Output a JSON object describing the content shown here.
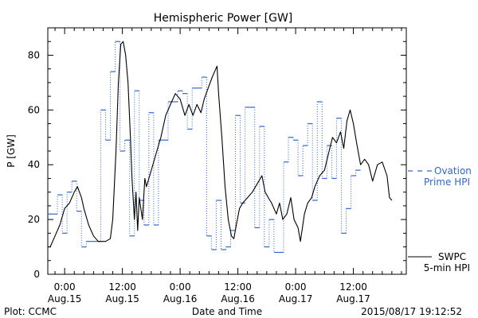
{
  "chart_data": {
    "type": "line",
    "title": "Hemispheric Power [GW]",
    "ylabel": "P [GW]",
    "xlabel": "Date and Time",
    "ylim": [
      0,
      90
    ],
    "y_ticks": [
      0,
      20,
      40,
      60,
      80
    ],
    "xlim": [
      "2015-08-14T20:30",
      "2015-08-17T23:00"
    ],
    "x_ticks": [
      {
        "time": "2015-08-15T00:00",
        "line1": "0:00",
        "line2": "Aug.15"
      },
      {
        "time": "2015-08-15T12:00",
        "line1": "12:00",
        "line2": "Aug.15"
      },
      {
        "time": "2015-08-16T00:00",
        "line1": "0:00",
        "line2": "Aug.16"
      },
      {
        "time": "2015-08-16T12:00",
        "line1": "12:00",
        "line2": "Aug.16"
      },
      {
        "time": "2015-08-17T00:00",
        "line1": "0:00",
        "line2": "Aug.17"
      },
      {
        "time": "2015-08-17T12:00",
        "line1": "12:00",
        "line2": "Aug.17"
      }
    ],
    "grid": false,
    "legend": {
      "placement": "right"
    },
    "series": [
      {
        "name": "SWPC 5-min HPI",
        "legend_lines": [
          "SWPC",
          "5-min HPI"
        ],
        "color": "#000000",
        "style": "solid",
        "points": [
          [
            "2015-08-14T20:30",
            10
          ],
          [
            "2015-08-14T21:00",
            10
          ],
          [
            "2015-08-14T22:00",
            14
          ],
          [
            "2015-08-14T23:00",
            18
          ],
          [
            "2015-08-15T00:00",
            24
          ],
          [
            "2015-08-15T01:00",
            26
          ],
          [
            "2015-08-15T02:00",
            30
          ],
          [
            "2015-08-15T02:40",
            32
          ],
          [
            "2015-08-15T03:30",
            28
          ],
          [
            "2015-08-15T04:00",
            24
          ],
          [
            "2015-08-15T05:00",
            18
          ],
          [
            "2015-08-15T06:00",
            14
          ],
          [
            "2015-08-15T07:00",
            12
          ],
          [
            "2015-08-15T08:30",
            12
          ],
          [
            "2015-08-15T09:30",
            13
          ],
          [
            "2015-08-15T10:00",
            20
          ],
          [
            "2015-08-15T10:40",
            45
          ],
          [
            "2015-08-15T11:10",
            70
          ],
          [
            "2015-08-15T11:40",
            84
          ],
          [
            "2015-08-15T12:10",
            85
          ],
          [
            "2015-08-15T12:40",
            80
          ],
          [
            "2015-08-15T13:10",
            70
          ],
          [
            "2015-08-15T13:40",
            50
          ],
          [
            "2015-08-15T14:00",
            35
          ],
          [
            "2015-08-15T14:30",
            20
          ],
          [
            "2015-08-15T14:50",
            30
          ],
          [
            "2015-08-15T15:10",
            16
          ],
          [
            "2015-08-15T15:30",
            28
          ],
          [
            "2015-08-15T16:10",
            20
          ],
          [
            "2015-08-15T16:40",
            35
          ],
          [
            "2015-08-15T17:00",
            32
          ],
          [
            "2015-08-15T18:00",
            38
          ],
          [
            "2015-08-15T19:00",
            44
          ],
          [
            "2015-08-15T20:00",
            50
          ],
          [
            "2015-08-15T21:00",
            58
          ],
          [
            "2015-08-15T22:00",
            62
          ],
          [
            "2015-08-15T23:00",
            66
          ],
          [
            "2015-08-16T00:00",
            64
          ],
          [
            "2015-08-16T01:00",
            58
          ],
          [
            "2015-08-16T01:50",
            62
          ],
          [
            "2015-08-16T02:40",
            58
          ],
          [
            "2015-08-16T03:30",
            62
          ],
          [
            "2015-08-16T04:20",
            59
          ],
          [
            "2015-08-16T05:00",
            64
          ],
          [
            "2015-08-16T05:50",
            68
          ],
          [
            "2015-08-16T06:40",
            72
          ],
          [
            "2015-08-16T07:40",
            76
          ],
          [
            "2015-08-16T08:00",
            66
          ],
          [
            "2015-08-16T08:40",
            50
          ],
          [
            "2015-08-16T09:20",
            32
          ],
          [
            "2015-08-16T10:00",
            20
          ],
          [
            "2015-08-16T10:40",
            14
          ],
          [
            "2015-08-16T11:10",
            13
          ],
          [
            "2015-08-16T11:40",
            18
          ],
          [
            "2015-08-16T12:20",
            24
          ],
          [
            "2015-08-16T13:00",
            26
          ],
          [
            "2015-08-16T14:00",
            28
          ],
          [
            "2015-08-16T15:00",
            30
          ],
          [
            "2015-08-16T16:00",
            33
          ],
          [
            "2015-08-16T17:00",
            36
          ],
          [
            "2015-08-16T17:40",
            30
          ],
          [
            "2015-08-16T18:20",
            28
          ],
          [
            "2015-08-16T19:00",
            26
          ],
          [
            "2015-08-16T20:00",
            22
          ],
          [
            "2015-08-16T20:40",
            26
          ],
          [
            "2015-08-16T21:20",
            20
          ],
          [
            "2015-08-16T22:10",
            22
          ],
          [
            "2015-08-16T23:00",
            28
          ],
          [
            "2015-08-16T23:40",
            20
          ],
          [
            "2015-08-17T00:30",
            17
          ],
          [
            "2015-08-17T01:00",
            12
          ],
          [
            "2015-08-17T01:50",
            22
          ],
          [
            "2015-08-17T02:30",
            26
          ],
          [
            "2015-08-17T03:20",
            28
          ],
          [
            "2015-08-17T04:00",
            32
          ],
          [
            "2015-08-17T05:00",
            36
          ],
          [
            "2015-08-17T06:00",
            38
          ],
          [
            "2015-08-17T06:50",
            44
          ],
          [
            "2015-08-17T07:40",
            50
          ],
          [
            "2015-08-17T08:30",
            48
          ],
          [
            "2015-08-17T09:20",
            52
          ],
          [
            "2015-08-17T10:00",
            46
          ],
          [
            "2015-08-17T10:40",
            56
          ],
          [
            "2015-08-17T11:20",
            60
          ],
          [
            "2015-08-17T12:00",
            55
          ],
          [
            "2015-08-17T12:40",
            48
          ],
          [
            "2015-08-17T13:30",
            40
          ],
          [
            "2015-08-17T14:20",
            42
          ],
          [
            "2015-08-17T15:10",
            40
          ],
          [
            "2015-08-17T16:00",
            34
          ],
          [
            "2015-08-17T17:00",
            40
          ],
          [
            "2015-08-17T18:00",
            41
          ],
          [
            "2015-08-17T19:00",
            36
          ],
          [
            "2015-08-17T19:30",
            28
          ],
          [
            "2015-08-17T20:00",
            27
          ]
        ]
      },
      {
        "name": "Ovation Prime HPI",
        "legend_lines": [
          "Ovation",
          "Prime HPI"
        ],
        "color": "#3366cc",
        "style": "step-dashed-dotted",
        "interval_minutes": 60,
        "start": "2015-08-14T20:30",
        "values": [
          22,
          22,
          29,
          15,
          30,
          34,
          23,
          10,
          12,
          12,
          12,
          60,
          49,
          74,
          85,
          45,
          49,
          14,
          67,
          27,
          18,
          59,
          18,
          49,
          49,
          63,
          63,
          67,
          66,
          53,
          68,
          68,
          72,
          14,
          9,
          27,
          9,
          10,
          16,
          58,
          26,
          61,
          61,
          17,
          54,
          10,
          20,
          8,
          8,
          41,
          50,
          49,
          36,
          47,
          55,
          27,
          63,
          35,
          47,
          35,
          57,
          15,
          24,
          36,
          38
        ]
      }
    ]
  },
  "footer": {
    "left": "Plot: CCMC",
    "right": "2015/08/17 19:12:52"
  }
}
